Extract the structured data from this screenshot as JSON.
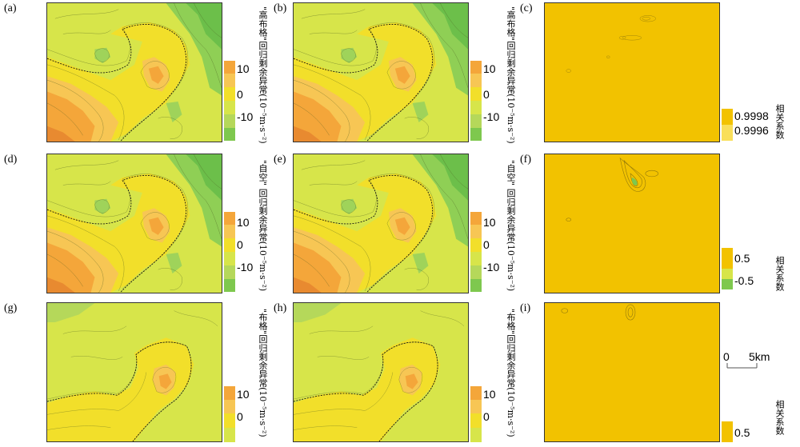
{
  "panels": {
    "a": {
      "label": "(a)",
      "colorbar_label": "\"高布格\"回归剩余异常(10⁻⁵m·s⁻²)",
      "ticks": [
        "10",
        "0",
        "-10"
      ]
    },
    "b": {
      "label": "(b)",
      "colorbar_label": "\"高布格\"回归剩余异常(10⁻⁵m·s⁻²)",
      "ticks": [
        "10",
        "0",
        "-10"
      ]
    },
    "c": {
      "label": "(c)",
      "colorbar_label": "相关系数",
      "ticks": [
        "0.9998",
        "0.9996"
      ]
    },
    "d": {
      "label": "(d)",
      "colorbar_label": "\"自空\" 回归剩余异常(10⁻⁵m·s⁻²)",
      "ticks": [
        "10",
        "0",
        "-10"
      ]
    },
    "e": {
      "label": "(e)",
      "colorbar_label": "\"自空\" 回归剩余异常(10⁻⁵m·s⁻²)",
      "ticks": [
        "10",
        "0",
        "-10"
      ]
    },
    "f": {
      "label": "(f)",
      "colorbar_label": "相关系数",
      "ticks": [
        "0.5",
        "-0.5"
      ]
    },
    "g": {
      "label": "(g)",
      "colorbar_label": "\"布格\"回归剩余异常(10⁻⁵m·s⁻²)",
      "ticks": [
        "10",
        "0"
      ]
    },
    "h": {
      "label": "(h)",
      "colorbar_label": "\"布格\"回归剩余异常(10⁻⁵m·s⁻²)",
      "ticks": [
        "10",
        "0"
      ]
    },
    "i": {
      "label": "(i)",
      "colorbar_label": "相关系数",
      "ticks": [
        "0.5"
      ]
    }
  },
  "scale_bar": {
    "start": "0",
    "end": "5km"
  },
  "colors": {
    "orange": "#f4a63a",
    "light_orange": "#f7c654",
    "yellow": "#f2df2a",
    "yellow_green": "#d7e54a",
    "light_green": "#b5d85a",
    "green": "#7ec84e",
    "corr_fill": "#f2c200"
  },
  "chart_data": [
    {
      "type": "heatmap",
      "panel": "a",
      "colorbar_ticks": [
        10,
        0,
        -10
      ]
    },
    {
      "type": "heatmap",
      "panel": "b",
      "colorbar_ticks": [
        10,
        0,
        -10
      ]
    },
    {
      "type": "heatmap",
      "panel": "c",
      "colorbar_ticks": [
        0.9998,
        0.9996
      ]
    },
    {
      "type": "heatmap",
      "panel": "d",
      "colorbar_ticks": [
        10,
        0,
        -10
      ]
    },
    {
      "type": "heatmap",
      "panel": "e",
      "colorbar_ticks": [
        10,
        0,
        -10
      ]
    },
    {
      "type": "heatmap",
      "panel": "f",
      "colorbar_ticks": [
        0.5,
        -0.5
      ]
    },
    {
      "type": "heatmap",
      "panel": "g",
      "colorbar_ticks": [
        10,
        0
      ]
    },
    {
      "type": "heatmap",
      "panel": "h",
      "colorbar_ticks": [
        10,
        0
      ]
    },
    {
      "type": "heatmap",
      "panel": "i",
      "colorbar_ticks": [
        0.5
      ]
    }
  ]
}
